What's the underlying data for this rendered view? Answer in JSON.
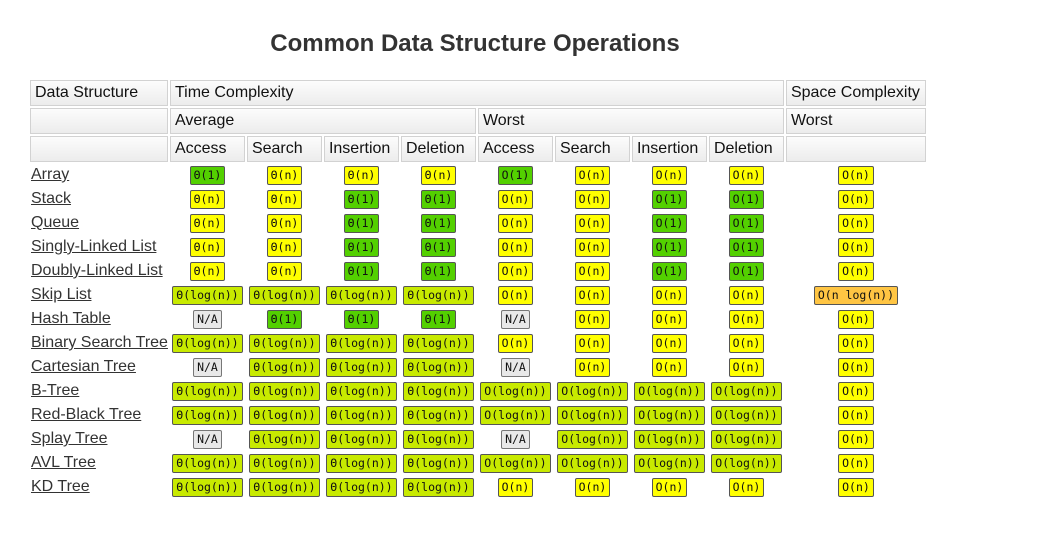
{
  "title": "Common Data Structure Operations",
  "header": {
    "col_data_structure": "Data Structure",
    "col_time": "Time Complexity",
    "col_space": "Space Complexity",
    "average": "Average",
    "worst": "Worst",
    "space_worst": "Worst",
    "ops": [
      "Access",
      "Search",
      "Insertion",
      "Deletion",
      "Access",
      "Search",
      "Insertion",
      "Deletion"
    ]
  },
  "colors": {
    "yellow": "#ffff00",
    "green": "#53d000",
    "lgreen": "#c8ea00",
    "orange": "#ffc543",
    "gray": "#e8e8e8"
  },
  "rows": [
    {
      "name": "Array",
      "cells": [
        [
          "Θ(1)",
          "green"
        ],
        [
          "Θ(n)",
          "yellow"
        ],
        [
          "Θ(n)",
          "yellow"
        ],
        [
          "Θ(n)",
          "yellow"
        ],
        [
          "O(1)",
          "green"
        ],
        [
          "O(n)",
          "yellow"
        ],
        [
          "O(n)",
          "yellow"
        ],
        [
          "O(n)",
          "yellow"
        ],
        [
          "O(n)",
          "yellow"
        ]
      ]
    },
    {
      "name": "Stack",
      "cells": [
        [
          "Θ(n)",
          "yellow"
        ],
        [
          "Θ(n)",
          "yellow"
        ],
        [
          "Θ(1)",
          "green"
        ],
        [
          "Θ(1)",
          "green"
        ],
        [
          "O(n)",
          "yellow"
        ],
        [
          "O(n)",
          "yellow"
        ],
        [
          "O(1)",
          "green"
        ],
        [
          "O(1)",
          "green"
        ],
        [
          "O(n)",
          "yellow"
        ]
      ]
    },
    {
      "name": "Queue",
      "cells": [
        [
          "Θ(n)",
          "yellow"
        ],
        [
          "Θ(n)",
          "yellow"
        ],
        [
          "Θ(1)",
          "green"
        ],
        [
          "Θ(1)",
          "green"
        ],
        [
          "O(n)",
          "yellow"
        ],
        [
          "O(n)",
          "yellow"
        ],
        [
          "O(1)",
          "green"
        ],
        [
          "O(1)",
          "green"
        ],
        [
          "O(n)",
          "yellow"
        ]
      ]
    },
    {
      "name": "Singly-Linked List",
      "cells": [
        [
          "Θ(n)",
          "yellow"
        ],
        [
          "Θ(n)",
          "yellow"
        ],
        [
          "Θ(1)",
          "green"
        ],
        [
          "Θ(1)",
          "green"
        ],
        [
          "O(n)",
          "yellow"
        ],
        [
          "O(n)",
          "yellow"
        ],
        [
          "O(1)",
          "green"
        ],
        [
          "O(1)",
          "green"
        ],
        [
          "O(n)",
          "yellow"
        ]
      ]
    },
    {
      "name": "Doubly-Linked List",
      "cells": [
        [
          "Θ(n)",
          "yellow"
        ],
        [
          "Θ(n)",
          "yellow"
        ],
        [
          "Θ(1)",
          "green"
        ],
        [
          "Θ(1)",
          "green"
        ],
        [
          "O(n)",
          "yellow"
        ],
        [
          "O(n)",
          "yellow"
        ],
        [
          "O(1)",
          "green"
        ],
        [
          "O(1)",
          "green"
        ],
        [
          "O(n)",
          "yellow"
        ]
      ]
    },
    {
      "name": "Skip List",
      "cells": [
        [
          "Θ(log(n))",
          "lgreen"
        ],
        [
          "Θ(log(n))",
          "lgreen"
        ],
        [
          "Θ(log(n))",
          "lgreen"
        ],
        [
          "Θ(log(n))",
          "lgreen"
        ],
        [
          "O(n)",
          "yellow"
        ],
        [
          "O(n)",
          "yellow"
        ],
        [
          "O(n)",
          "yellow"
        ],
        [
          "O(n)",
          "yellow"
        ],
        [
          "O(n log(n))",
          "orange"
        ]
      ]
    },
    {
      "name": "Hash Table",
      "cells": [
        [
          "N/A",
          "gray"
        ],
        [
          "Θ(1)",
          "green"
        ],
        [
          "Θ(1)",
          "green"
        ],
        [
          "Θ(1)",
          "green"
        ],
        [
          "N/A",
          "gray"
        ],
        [
          "O(n)",
          "yellow"
        ],
        [
          "O(n)",
          "yellow"
        ],
        [
          "O(n)",
          "yellow"
        ],
        [
          "O(n)",
          "yellow"
        ]
      ]
    },
    {
      "name": "Binary Search Tree",
      "cells": [
        [
          "Θ(log(n))",
          "lgreen"
        ],
        [
          "Θ(log(n))",
          "lgreen"
        ],
        [
          "Θ(log(n))",
          "lgreen"
        ],
        [
          "Θ(log(n))",
          "lgreen"
        ],
        [
          "O(n)",
          "yellow"
        ],
        [
          "O(n)",
          "yellow"
        ],
        [
          "O(n)",
          "yellow"
        ],
        [
          "O(n)",
          "yellow"
        ],
        [
          "O(n)",
          "yellow"
        ]
      ]
    },
    {
      "name": "Cartesian Tree",
      "cells": [
        [
          "N/A",
          "gray"
        ],
        [
          "Θ(log(n))",
          "lgreen"
        ],
        [
          "Θ(log(n))",
          "lgreen"
        ],
        [
          "Θ(log(n))",
          "lgreen"
        ],
        [
          "N/A",
          "gray"
        ],
        [
          "O(n)",
          "yellow"
        ],
        [
          "O(n)",
          "yellow"
        ],
        [
          "O(n)",
          "yellow"
        ],
        [
          "O(n)",
          "yellow"
        ]
      ]
    },
    {
      "name": "B-Tree",
      "cells": [
        [
          "Θ(log(n))",
          "lgreen"
        ],
        [
          "Θ(log(n))",
          "lgreen"
        ],
        [
          "Θ(log(n))",
          "lgreen"
        ],
        [
          "Θ(log(n))",
          "lgreen"
        ],
        [
          "O(log(n))",
          "lgreen"
        ],
        [
          "O(log(n))",
          "lgreen"
        ],
        [
          "O(log(n))",
          "lgreen"
        ],
        [
          "O(log(n))",
          "lgreen"
        ],
        [
          "O(n)",
          "yellow"
        ]
      ]
    },
    {
      "name": "Red-Black Tree",
      "cells": [
        [
          "Θ(log(n))",
          "lgreen"
        ],
        [
          "Θ(log(n))",
          "lgreen"
        ],
        [
          "Θ(log(n))",
          "lgreen"
        ],
        [
          "Θ(log(n))",
          "lgreen"
        ],
        [
          "O(log(n))",
          "lgreen"
        ],
        [
          "O(log(n))",
          "lgreen"
        ],
        [
          "O(log(n))",
          "lgreen"
        ],
        [
          "O(log(n))",
          "lgreen"
        ],
        [
          "O(n)",
          "yellow"
        ]
      ]
    },
    {
      "name": "Splay Tree",
      "cells": [
        [
          "N/A",
          "gray"
        ],
        [
          "Θ(log(n))",
          "lgreen"
        ],
        [
          "Θ(log(n))",
          "lgreen"
        ],
        [
          "Θ(log(n))",
          "lgreen"
        ],
        [
          "N/A",
          "gray"
        ],
        [
          "O(log(n))",
          "lgreen"
        ],
        [
          "O(log(n))",
          "lgreen"
        ],
        [
          "O(log(n))",
          "lgreen"
        ],
        [
          "O(n)",
          "yellow"
        ]
      ]
    },
    {
      "name": "AVL Tree",
      "cells": [
        [
          "Θ(log(n))",
          "lgreen"
        ],
        [
          "Θ(log(n))",
          "lgreen"
        ],
        [
          "Θ(log(n))",
          "lgreen"
        ],
        [
          "Θ(log(n))",
          "lgreen"
        ],
        [
          "O(log(n))",
          "lgreen"
        ],
        [
          "O(log(n))",
          "lgreen"
        ],
        [
          "O(log(n))",
          "lgreen"
        ],
        [
          "O(log(n))",
          "lgreen"
        ],
        [
          "O(n)",
          "yellow"
        ]
      ]
    },
    {
      "name": "KD Tree",
      "cells": [
        [
          "Θ(log(n))",
          "lgreen"
        ],
        [
          "Θ(log(n))",
          "lgreen"
        ],
        [
          "Θ(log(n))",
          "lgreen"
        ],
        [
          "Θ(log(n))",
          "lgreen"
        ],
        [
          "O(n)",
          "yellow"
        ],
        [
          "O(n)",
          "yellow"
        ],
        [
          "O(n)",
          "yellow"
        ],
        [
          "O(n)",
          "yellow"
        ],
        [
          "O(n)",
          "yellow"
        ]
      ]
    }
  ]
}
